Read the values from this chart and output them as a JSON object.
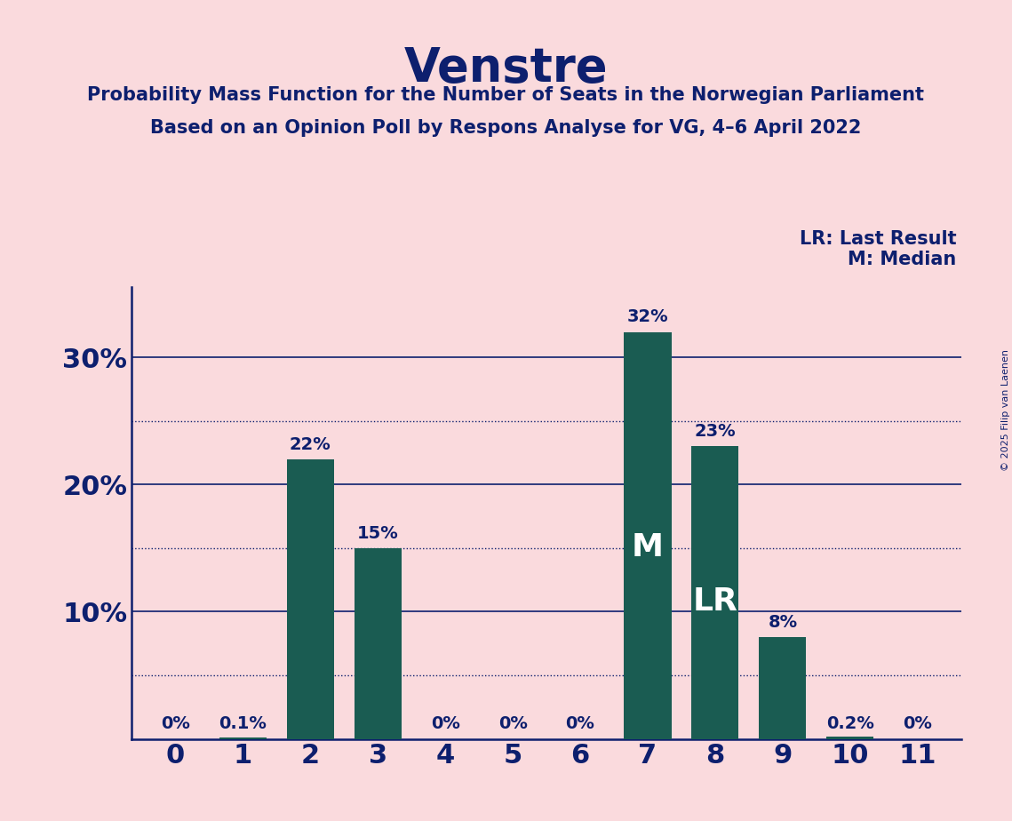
{
  "title": "Venstre",
  "subtitle1": "Probability Mass Function for the Number of Seats in the Norwegian Parliament",
  "subtitle2": "Based on an Opinion Poll by Respons Analyse for VG, 4–6 April 2022",
  "copyright": "© 2025 Filip van Laenen",
  "categories": [
    0,
    1,
    2,
    3,
    4,
    5,
    6,
    7,
    8,
    9,
    10,
    11
  ],
  "values": [
    0.0,
    0.001,
    0.22,
    0.15,
    0.0,
    0.0,
    0.0,
    0.32,
    0.23,
    0.08,
    0.002,
    0.0
  ],
  "bar_color": "#1a5c52",
  "background_color": "#fadadd",
  "title_color": "#0d1f6e",
  "label_color": "#ffffff",
  "tick_label_color": "#0d1f6e",
  "legend_text": [
    "LR: Last Result",
    "M: Median"
  ],
  "median_bar": 7,
  "lr_bar": 8,
  "bar_labels": [
    "0%",
    "0.1%",
    "22%",
    "15%",
    "0%",
    "0%",
    "0%",
    "32%",
    "23%",
    "8%",
    "0.2%",
    "0%"
  ],
  "ylim": [
    0,
    0.355
  ],
  "solid_yticks": [
    0.1,
    0.2,
    0.3
  ],
  "dotted_yticks": [
    0.05,
    0.15,
    0.25
  ],
  "ytick_labels": [
    "10%",
    "20%",
    "30%"
  ],
  "spine_color": "#0d1f6e"
}
